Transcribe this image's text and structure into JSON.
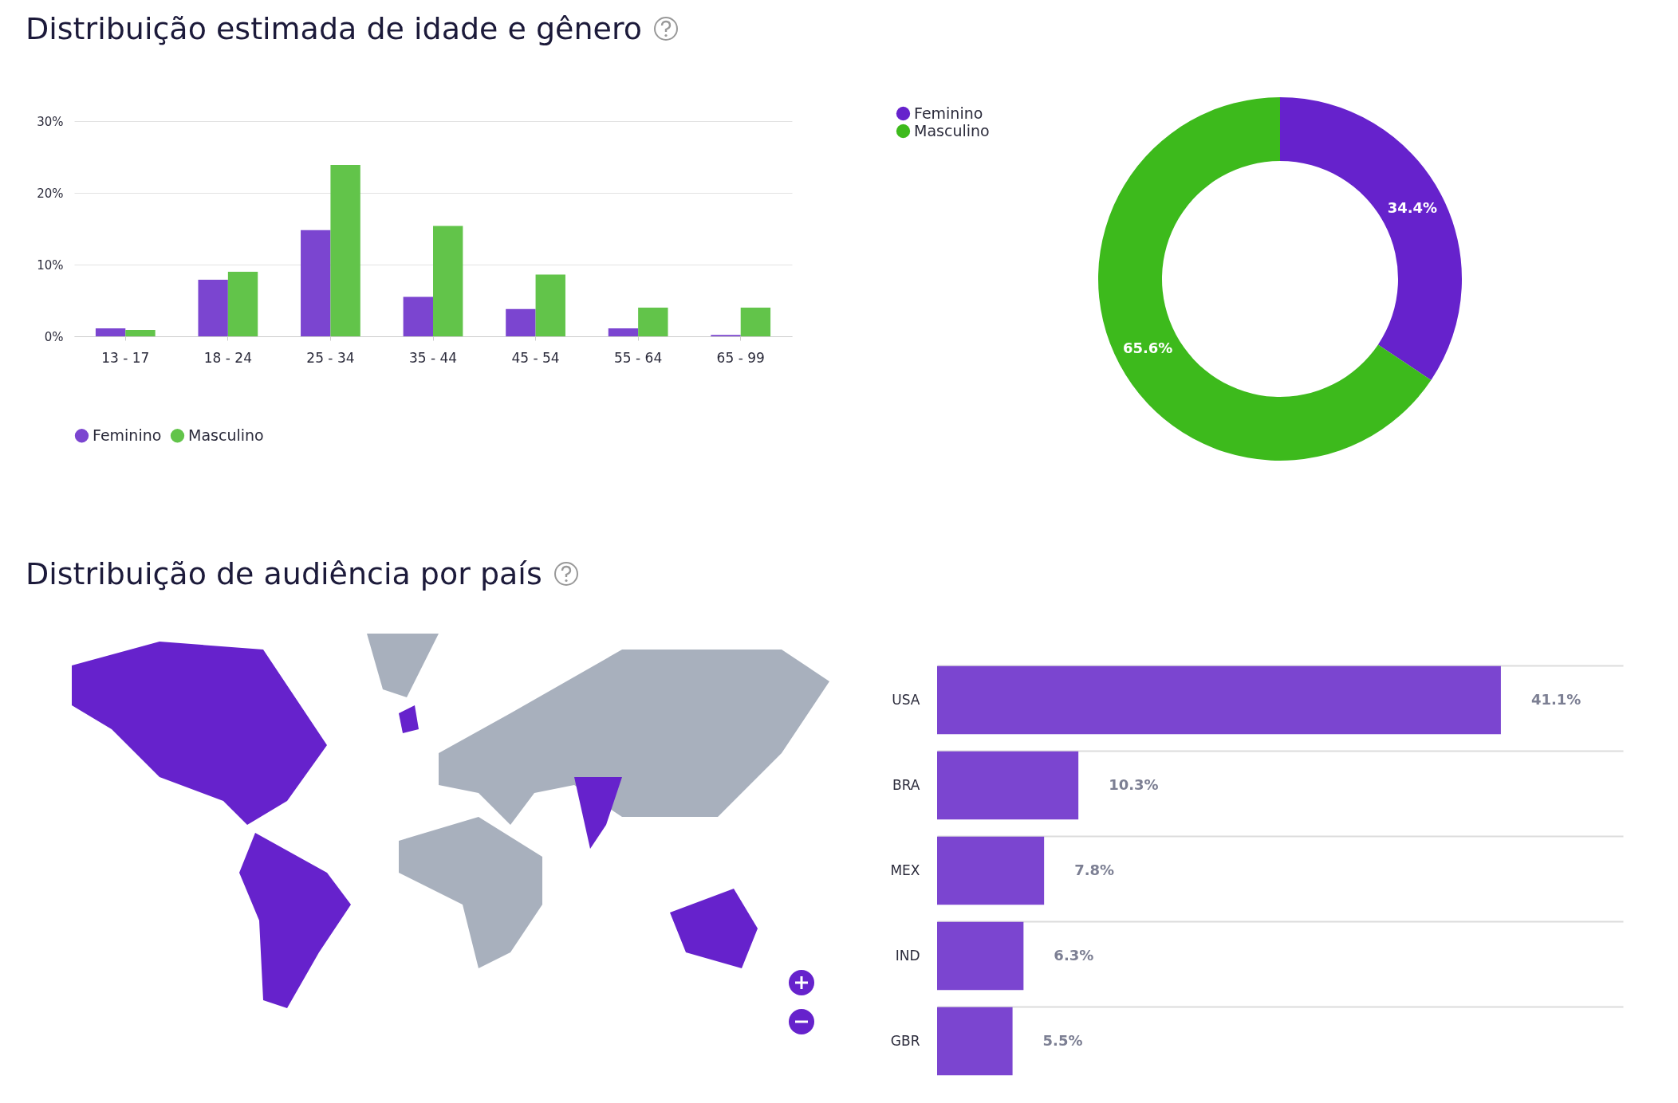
{
  "chart_data": [
    {
      "type": "bar",
      "title": "Distribuição estimada de idade e gênero",
      "categories": [
        "13 - 17",
        "18 - 24",
        "25 - 34",
        "35 - 44",
        "45 - 54",
        "55 - 64",
        "65 - 99"
      ],
      "series": [
        {
          "name": "Feminino",
          "color": "#7b45d0",
          "values": [
            1.1,
            7.9,
            14.8,
            5.5,
            3.8,
            1.1,
            0.2
          ]
        },
        {
          "name": "Masculino",
          "color": "#62c44a",
          "values": [
            0.9,
            9.0,
            23.9,
            15.4,
            8.6,
            4.0,
            4.0
          ]
        }
      ],
      "ylim": [
        0,
        30
      ],
      "yticks": [
        {
          "value": 0,
          "label": "0%"
        },
        {
          "value": 10,
          "label": "10%"
        },
        {
          "value": 20,
          "label": "20%"
        },
        {
          "value": 30,
          "label": "30%"
        }
      ],
      "grid": "y",
      "legend": "bottom"
    },
    {
      "type": "donut",
      "categories": [
        "Feminino",
        "Masculino"
      ],
      "values": [
        34.4,
        65.6
      ],
      "colors": [
        "#6622cc",
        "#3dba1c"
      ],
      "value_labels": [
        "34.4%",
        "65.6%"
      ],
      "legend": "top left"
    },
    {
      "type": "other",
      "title": "Distribuição de audiência por país"
    },
    {
      "type": "bar",
      "orientation": "horizontal",
      "categories": [
        "USA",
        "BRA",
        "MEX",
        "IND",
        "GBR"
      ],
      "values": [
        41.1,
        10.3,
        7.8,
        6.3,
        5.5
      ],
      "color": "#7b45d0",
      "value_labels": [
        "41.1%",
        "10.3%",
        "7.8%",
        "6.3%",
        "5.5%"
      ],
      "xlim": [
        0,
        50
      ],
      "tick_labels": "y",
      "grid": "y"
    }
  ]
}
